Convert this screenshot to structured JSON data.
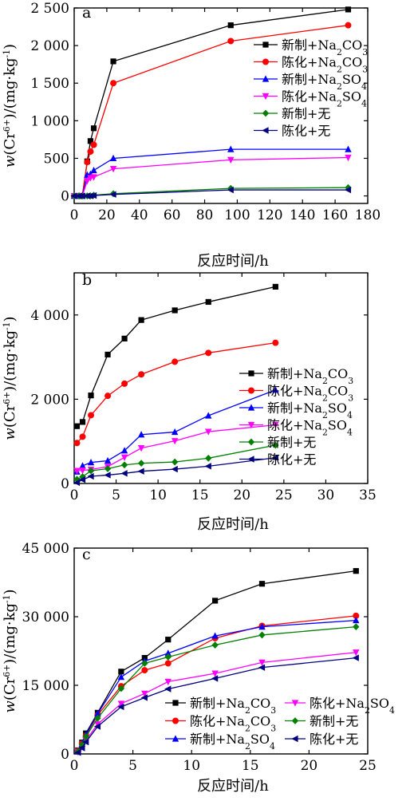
{
  "chart_data": [
    {
      "panel": "a",
      "type": "line",
      "xlabel": "反应时间/h",
      "ylabel": "w(Cr6+)/(mg·kg-1)",
      "xlim": [
        0,
        180
      ],
      "ylim": [
        -100,
        2500
      ],
      "xticks": [
        0,
        20,
        40,
        60,
        80,
        100,
        120,
        140,
        160,
        180
      ],
      "xtick_labels": [
        "0",
        "20",
        "40",
        "60",
        "80",
        "100",
        "120",
        "140",
        "160",
        "180"
      ],
      "yticks": [
        0,
        500,
        1000,
        1500,
        2000,
        2500
      ],
      "ytick_labels": [
        "0",
        "500",
        "1 000",
        "1 500",
        "2 000",
        "2 500"
      ],
      "legend_position": "right",
      "series": [
        {
          "name": "新制+Na2CO3",
          "color": "#000000",
          "marker": "square",
          "x": [
            0,
            3,
            5,
            8,
            10,
            12,
            24,
            96,
            168
          ],
          "y": [
            0,
            0,
            0,
            460,
            730,
            900,
            1790,
            2270,
            2480
          ]
        },
        {
          "name": "陈化+Na2CO3",
          "color": "#ff0000",
          "marker": "circle",
          "x": [
            0,
            3,
            5,
            8,
            10,
            12,
            24,
            96,
            168
          ],
          "y": [
            0,
            0,
            0,
            450,
            590,
            680,
            1500,
            2060,
            2270
          ]
        },
        {
          "name": "新制+Na2SO4",
          "color": "#0000ff",
          "marker": "triangle-up",
          "x": [
            0,
            3,
            5,
            8,
            10,
            12,
            24,
            96,
            168
          ],
          "y": [
            0,
            0,
            0,
            280,
            290,
            340,
            500,
            620,
            620
          ]
        },
        {
          "name": "陈化+Na2SO4",
          "color": "#ff00ff",
          "marker": "triangle-down",
          "x": [
            0,
            3,
            5,
            8,
            10,
            12,
            24,
            96,
            168
          ],
          "y": [
            0,
            0,
            0,
            200,
            240,
            250,
            360,
            480,
            510
          ]
        },
        {
          "name": "新制+无",
          "color": "#008000",
          "marker": "diamond",
          "x": [
            0,
            3,
            5,
            8,
            10,
            12,
            24,
            96,
            168
          ],
          "y": [
            0,
            0,
            0,
            0,
            0,
            10,
            30,
            100,
            110
          ]
        },
        {
          "name": "陈化+无",
          "color": "#000080",
          "marker": "triangle-left",
          "x": [
            0,
            3,
            5,
            8,
            10,
            12,
            24,
            96,
            168
          ],
          "y": [
            0,
            0,
            0,
            0,
            0,
            5,
            20,
            80,
            80
          ]
        }
      ]
    },
    {
      "panel": "b",
      "type": "line",
      "xlabel": "反应时间/h",
      "ylabel": "w(Cr6+)/(mg·kg-1)",
      "xlim": [
        0,
        35
      ],
      "ylim": [
        0,
        5000
      ],
      "xticks": [
        0,
        5,
        10,
        15,
        20,
        25,
        30,
        35
      ],
      "xtick_labels": [
        "0",
        "5",
        "10",
        "15",
        "20",
        "25",
        "30",
        "35"
      ],
      "yticks": [
        0,
        2000,
        4000
      ],
      "ytick_labels": [
        "0",
        "2 000",
        "4 000"
      ],
      "legend_position": "right",
      "series": [
        {
          "name": "新制+Na2CO3",
          "color": "#000000",
          "marker": "square",
          "x": [
            0.33,
            1,
            2,
            4,
            6,
            8,
            12,
            16,
            24
          ],
          "y": [
            1360,
            1460,
            2090,
            3060,
            3440,
            3880,
            4110,
            4310,
            4670
          ]
        },
        {
          "name": "陈化+Na2CO3",
          "color": "#ff0000",
          "marker": "circle",
          "x": [
            0.33,
            1,
            2,
            4,
            6,
            8,
            12,
            16,
            24
          ],
          "y": [
            960,
            1110,
            1620,
            2080,
            2370,
            2590,
            2890,
            3100,
            3340
          ]
        },
        {
          "name": "新制+Na2SO4",
          "color": "#0000ff",
          "marker": "triangle-up",
          "x": [
            0.33,
            1,
            2,
            4,
            6,
            8,
            12,
            16,
            24
          ],
          "y": [
            280,
            420,
            500,
            540,
            780,
            1160,
            1220,
            1610,
            2220
          ]
        },
        {
          "name": "陈化+Na2SO4",
          "color": "#ff00ff",
          "marker": "triangle-down",
          "x": [
            0.33,
            1,
            2,
            4,
            6,
            8,
            12,
            16,
            24
          ],
          "y": [
            300,
            310,
            330,
            400,
            620,
            840,
            1010,
            1230,
            1390
          ]
        },
        {
          "name": "新制+无",
          "color": "#008000",
          "marker": "diamond",
          "x": [
            0.33,
            1,
            2,
            4,
            6,
            8,
            12,
            16,
            24
          ],
          "y": [
            100,
            160,
            300,
            350,
            440,
            480,
            510,
            600,
            910
          ]
        },
        {
          "name": "陈化+无",
          "color": "#000080",
          "marker": "triangle-left",
          "x": [
            0.33,
            1,
            2,
            4,
            6,
            8,
            12,
            16,
            24
          ],
          "y": [
            20,
            90,
            170,
            200,
            240,
            290,
            340,
            410,
            610
          ]
        }
      ]
    },
    {
      "panel": "c",
      "type": "line",
      "xlabel": "反应时间/h",
      "ylabel": "w(Cr6+)/(mg·kg-1)",
      "xlim": [
        0,
        25
      ],
      "ylim": [
        0,
        45000
      ],
      "xticks": [
        0,
        5,
        10,
        15,
        20,
        25
      ],
      "xtick_labels": [
        "0",
        "5",
        "10",
        "15",
        "20",
        "25"
      ],
      "yticks": [
        0,
        15000,
        30000,
        45000
      ],
      "ytick_labels": [
        "0",
        "15 000",
        "30 000",
        "45 000"
      ],
      "legend_position": "bottom-right",
      "series": [
        {
          "name": "新制+Na2CO3",
          "color": "#000000",
          "marker": "square",
          "x": [
            0.33,
            0.67,
            1,
            2,
            4,
            6,
            8,
            12,
            16,
            24
          ],
          "y": [
            800,
            2500,
            4500,
            9000,
            18000,
            21000,
            25000,
            33500,
            37200,
            40000
          ]
        },
        {
          "name": "陈化+Na2CO3",
          "color": "#ff0000",
          "marker": "circle",
          "x": [
            0.33,
            0.67,
            1,
            2,
            4,
            6,
            8,
            12,
            16,
            24
          ],
          "y": [
            700,
            2300,
            4000,
            8500,
            14800,
            18300,
            19800,
            25300,
            28000,
            30200
          ]
        },
        {
          "name": "新制+Na2SO4",
          "color": "#0000ff",
          "marker": "triangle-up",
          "x": [
            0.33,
            0.67,
            1,
            2,
            4,
            6,
            8,
            12,
            16,
            24
          ],
          "y": [
            600,
            2200,
            4200,
            8800,
            16800,
            20300,
            22000,
            25800,
            27800,
            29200
          ]
        },
        {
          "name": "陈化+Na2SO4",
          "color": "#ff00ff",
          "marker": "triangle-down",
          "x": [
            0.33,
            0.67,
            1,
            2,
            4,
            6,
            8,
            12,
            16,
            24
          ],
          "y": [
            400,
            1500,
            3000,
            6500,
            11000,
            13200,
            15800,
            17600,
            20000,
            22200
          ]
        },
        {
          "name": "新制+无",
          "color": "#008000",
          "marker": "diamond",
          "x": [
            0.33,
            0.67,
            1,
            2,
            4,
            6,
            8,
            12,
            16,
            24
          ],
          "y": [
            500,
            2000,
            3800,
            7800,
            14300,
            19800,
            21200,
            23800,
            26000,
            27800
          ]
        },
        {
          "name": "陈化+无",
          "color": "#000080",
          "marker": "triangle-left",
          "x": [
            0.33,
            0.67,
            1,
            2,
            4,
            6,
            8,
            12,
            16,
            24
          ],
          "y": [
            300,
            1300,
            2600,
            6000,
            10300,
            12300,
            14200,
            16500,
            18900,
            21000
          ]
        }
      ]
    }
  ]
}
